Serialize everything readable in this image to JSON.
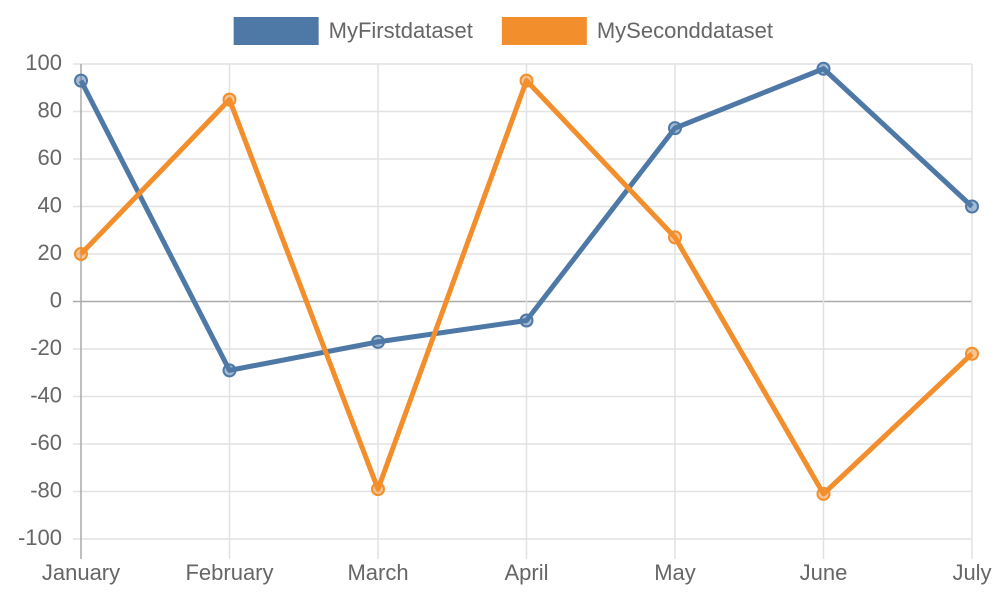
{
  "chart_data": {
    "type": "line",
    "categories": [
      "January",
      "February",
      "March",
      "April",
      "May",
      "June",
      "July"
    ],
    "series": [
      {
        "name": "MyFirstdataset",
        "color": "#4e79a7",
        "values": [
          93,
          -29,
          -17,
          -8,
          73,
          98,
          40
        ]
      },
      {
        "name": "MySeconddataset",
        "color": "#f28e2b",
        "values": [
          20,
          85,
          -79,
          93,
          27,
          -81,
          -22
        ]
      }
    ],
    "ylim": [
      -100,
      100
    ],
    "yticks": [
      -100,
      -80,
      -60,
      -40,
      -20,
      0,
      20,
      40,
      60,
      80,
      100
    ],
    "grid": true,
    "legend": "top"
  }
}
